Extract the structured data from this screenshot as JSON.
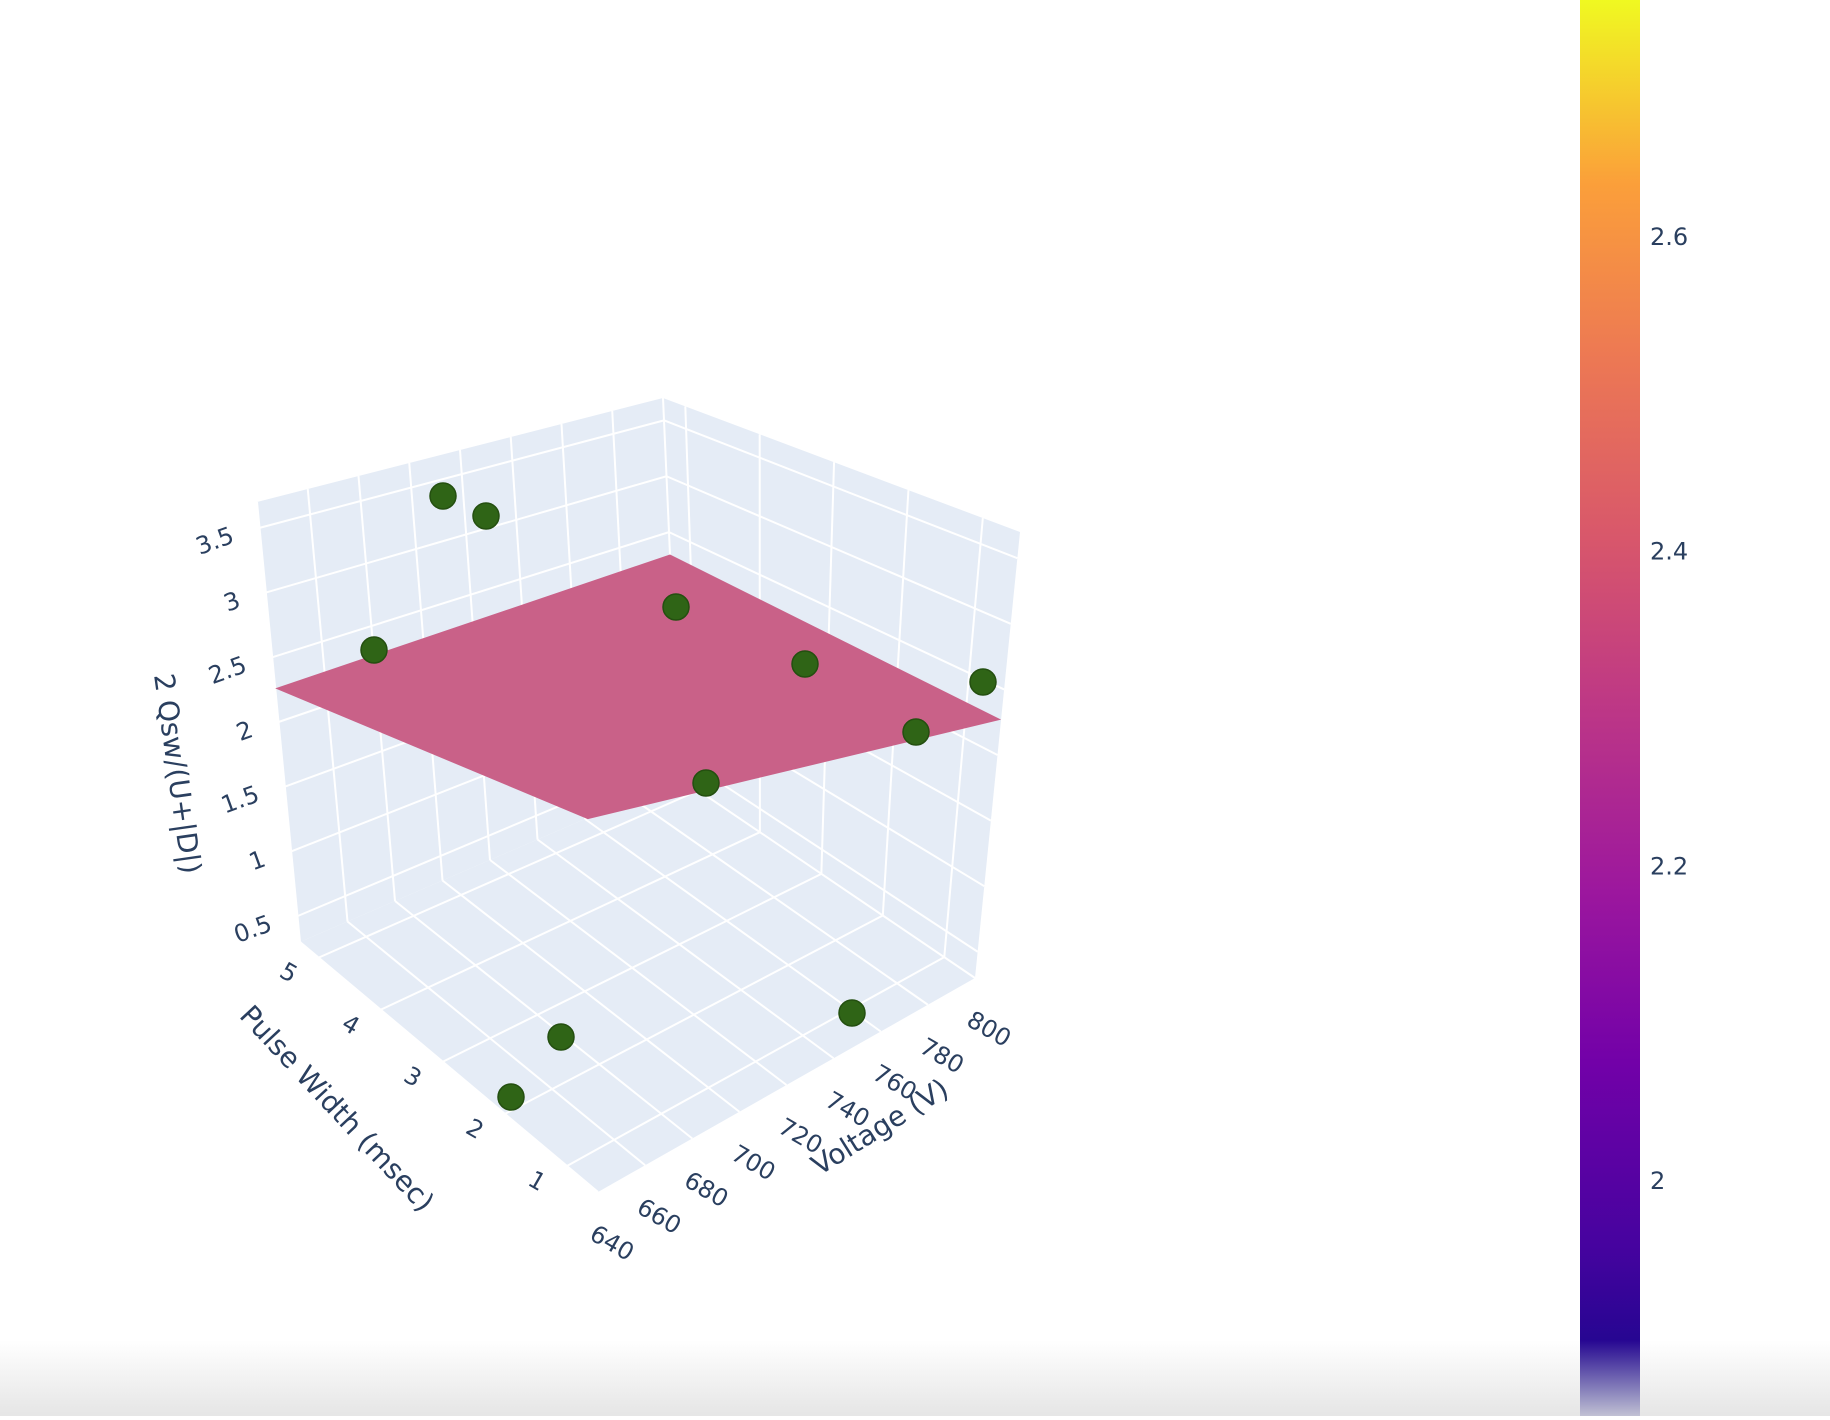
{
  "chart_data": {
    "type": "scatter3d",
    "axes": {
      "x": {
        "title": "Voltage (V)",
        "range": [
          640,
          800
        ],
        "ticks": [
          640,
          660,
          680,
          700,
          720,
          740,
          760,
          780,
          800
        ],
        "tick_labels": [
          "640",
          "660",
          "680",
          "700",
          "720",
          "740",
          "760",
          "780",
          "800"
        ]
      },
      "y": {
        "title": "Pulse Width (msec)",
        "range": [
          0.5,
          5.3
        ],
        "ticks": [
          1,
          2,
          3,
          4,
          5
        ],
        "tick_labels": [
          "1",
          "2",
          "3",
          "4",
          "5"
        ]
      },
      "z": {
        "title": "2 Qsw/(U+|D|)",
        "range": [
          0.3,
          3.7
        ],
        "ticks": [
          0.5,
          1,
          1.5,
          2,
          2.5,
          3,
          3.5
        ],
        "tick_labels": [
          "0.5",
          "1",
          "1.5",
          "2",
          "2.5",
          "3",
          "3.5"
        ]
      }
    },
    "plane": {
      "description_color": "#c75c84",
      "corners": [
        {
          "x": 640,
          "y": 0.5,
          "z": 2.23
        },
        {
          "x": 800,
          "y": 0.5,
          "z": 2.27
        },
        {
          "x": 800,
          "y": 5.3,
          "z": 2.3
        },
        {
          "x": 640,
          "y": 5.3,
          "z": 2.26
        }
      ]
    },
    "points": [
      {
        "x": 760,
        "y": 0.6,
        "z": 0.3,
        "sx": 852,
        "sy": 1013
      },
      {
        "x": 655,
        "y": 2.9,
        "z": 0.4,
        "sx": 561,
        "sy": 1037
      },
      {
        "x": 650,
        "y": 1.8,
        "z": 0.3,
        "sx": 511,
        "sy": 1097
      },
      {
        "x": 690,
        "y": 0.8,
        "z": 2.0,
        "sx": 706,
        "sy": 783
      },
      {
        "x": 780,
        "y": 3.8,
        "z": 2.4,
        "sx": 916,
        "sy": 732
      },
      {
        "x": 795,
        "y": 5.0,
        "z": 2.9,
        "sx": 983,
        "sy": 682
      },
      {
        "x": 720,
        "y": 4.2,
        "z": 2.6,
        "sx": 805,
        "sy": 664
      },
      {
        "x": 700,
        "y": 5.0,
        "z": 3.3,
        "sx": 676,
        "sy": 607
      },
      {
        "x": 650,
        "y": 0.8,
        "z": 2.9,
        "sx": 374,
        "sy": 650
      },
      {
        "x": 650,
        "y": 4.4,
        "z": 3.7,
        "sx": 443,
        "sy": 496
      },
      {
        "x": 655,
        "y": 5.0,
        "z": 3.7,
        "sx": 486,
        "sy": 516
      }
    ],
    "point_color": "#2f6416",
    "colorbar": {
      "colorscale": "plasma",
      "range": [
        1.85,
        2.75
      ],
      "ticks": [
        2,
        2.2,
        2.4,
        2.6
      ],
      "tick_labels": [
        "2",
        "2.2",
        "2.4",
        "2.6"
      ]
    },
    "scene_background": "#e5ecf6",
    "grid_color": "#ffffff"
  }
}
